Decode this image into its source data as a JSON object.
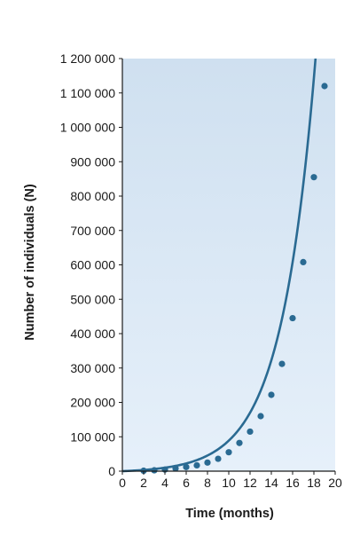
{
  "chart_data": {
    "type": "line",
    "title": "",
    "xlabel": "Time (months)",
    "ylabel": "Number of individuals (N)",
    "xlim": [
      0,
      20
    ],
    "ylim": [
      0,
      1200000
    ],
    "x_ticks": [
      "0",
      "2",
      "4",
      "6",
      "8",
      "10",
      "12",
      "14",
      "16",
      "18",
      "20"
    ],
    "y_ticks": [
      "0",
      "100 000",
      "200 000",
      "300 000",
      "400 000",
      "500 000",
      "600 000",
      "700 000",
      "800 000",
      "900 000",
      "1 000 000",
      "1 100 000",
      "1 200 000"
    ],
    "grid": false,
    "series": [
      {
        "x": [
          2,
          3,
          4,
          5,
          6,
          7,
          8,
          9,
          10,
          11,
          12,
          13,
          14,
          15,
          16,
          17,
          18,
          19
        ],
        "y": [
          1200,
          2500,
          4500,
          8000,
          12000,
          17000,
          25000,
          36000,
          55000,
          82000,
          115000,
          160000,
          222000,
          312000,
          445000,
          608000,
          855000,
          1120000
        ]
      }
    ],
    "colors": {
      "line": "#2a6a92",
      "point": "#2a6a92",
      "plot_bg_top": "#cfe0f0",
      "plot_bg_bottom": "#e6f0fa",
      "axis": "#1a1a1a"
    }
  }
}
